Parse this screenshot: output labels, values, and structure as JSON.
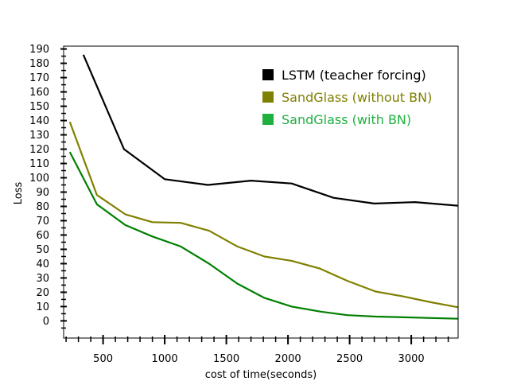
{
  "chart_data": {
    "type": "line",
    "xlabel": "cost of time(seconds)",
    "ylabel": "Loss",
    "xlim": [
      180,
      3380
    ],
    "ylim": [
      -12,
      192
    ],
    "xticks": [
      500,
      1000,
      1500,
      2000,
      2500,
      3000
    ],
    "yticks": [
      0,
      10,
      20,
      30,
      40,
      50,
      60,
      70,
      80,
      90,
      100,
      110,
      120,
      130,
      140,
      150,
      160,
      170,
      180,
      190
    ],
    "grid": false,
    "legend_position": "top-right",
    "series": [
      {
        "name": "LSTM (teacher forcing)",
        "color": "#000000",
        "legend_color": "#000000",
        "x": [
          340,
          670,
          1000,
          1350,
          1700,
          2030,
          2370,
          2700,
          3030,
          3380
        ],
        "y": [
          186,
          120,
          99,
          95,
          98,
          96,
          86,
          82,
          83,
          80.5
        ]
      },
      {
        "name": "SandGlass (without BN)",
        "color": "#808000",
        "legend_color": "#808000",
        "x": [
          230,
          450,
          680,
          900,
          1130,
          1360,
          1590,
          1810,
          2030,
          2260,
          2480,
          2710,
          2940,
          3160,
          3380
        ],
        "y": [
          139,
          88,
          74.5,
          69,
          68.5,
          63,
          52,
          45,
          42,
          36.5,
          28,
          20.5,
          17,
          13,
          9.5
        ]
      },
      {
        "name": "SandGlass (with BN)",
        "color": "#008000",
        "legend_color": "#20b040",
        "x": [
          230,
          450,
          680,
          900,
          1130,
          1360,
          1590,
          1810,
          2030,
          2260,
          2480,
          2710,
          2940,
          3160,
          3380
        ],
        "y": [
          118,
          81.5,
          67,
          59,
          52,
          40,
          26,
          16,
          10,
          6.5,
          4,
          3,
          2.5,
          2,
          1.5
        ]
      }
    ]
  }
}
